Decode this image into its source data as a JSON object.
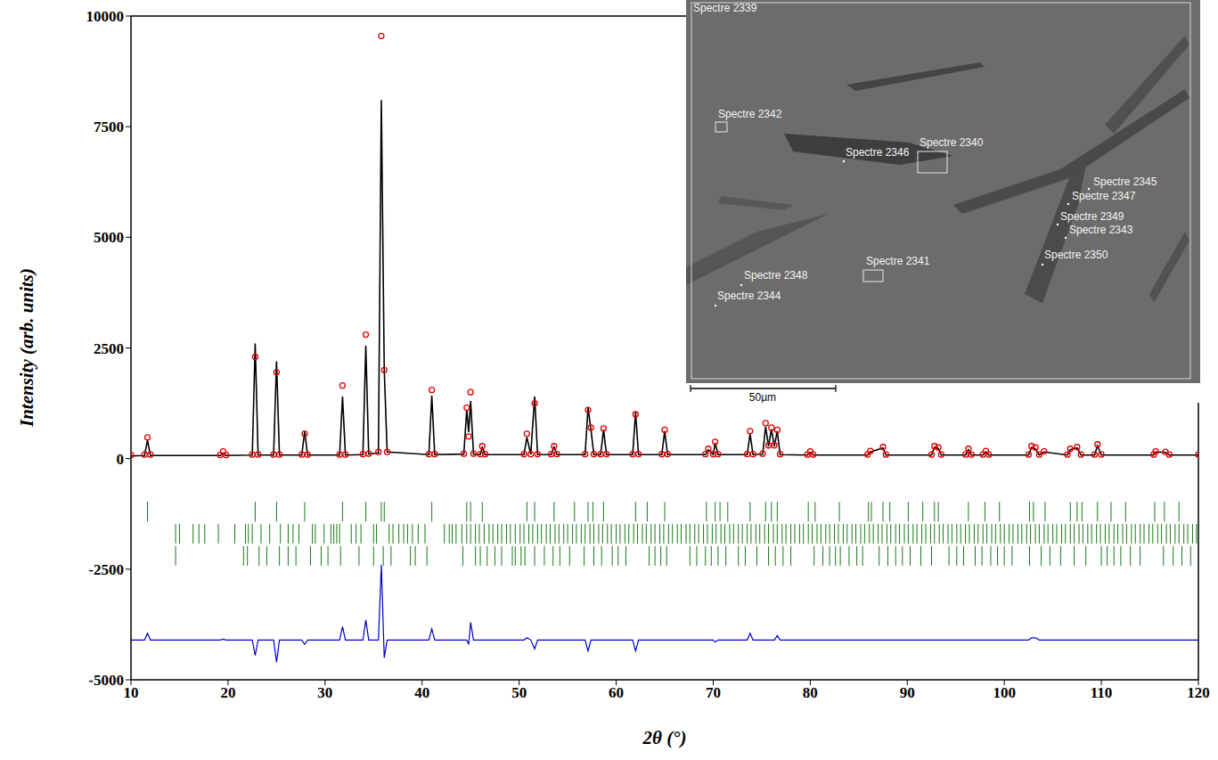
{
  "chart_data": {
    "type": "line",
    "x_label": "2θ (°)",
    "y_label": "Intensity (arb. units)",
    "xlim": [
      10,
      120
    ],
    "xticks": [
      10,
      20,
      30,
      40,
      50,
      60,
      70,
      80,
      90,
      100,
      110,
      120
    ],
    "ylim": [
      -5000,
      10000
    ],
    "yticks": [
      -5000,
      -2500,
      0,
      2500,
      5000,
      7500,
      10000
    ],
    "grid": false,
    "x": [
      10.0,
      11.4,
      11.7,
      12.0,
      19.2,
      19.5,
      19.8,
      22.5,
      22.8,
      23.1,
      24.7,
      25.0,
      25.3,
      27.6,
      27.9,
      28.2,
      31.5,
      31.8,
      32.1,
      33.9,
      34.2,
      34.5,
      35.5,
      35.8,
      36.1,
      36.4,
      40.7,
      41.0,
      41.3,
      44.3,
      44.6,
      44.8,
      45.0,
      45.3,
      46.0,
      46.2,
      46.5,
      50.5,
      50.8,
      51.2,
      51.6,
      51.9,
      53.3,
      53.6,
      53.9,
      56.8,
      57.1,
      57.4,
      57.7,
      58.4,
      58.7,
      59.0,
      61.7,
      62.0,
      62.3,
      64.7,
      65.0,
      65.3,
      69.2,
      69.5,
      70.0,
      70.2,
      70.5,
      73.5,
      73.8,
      74.1,
      75.1,
      75.4,
      75.7,
      76.0,
      76.3,
      76.6,
      76.9,
      79.7,
      80.0,
      80.3,
      85.9,
      86.2,
      87.5,
      87.8,
      92.5,
      92.8,
      93.2,
      93.5,
      96.0,
      96.3,
      96.6,
      97.8,
      98.1,
      98.4,
      102.5,
      102.8,
      103.2,
      103.6,
      104.1,
      106.5,
      106.8,
      107.5,
      107.9,
      109.3,
      109.6,
      110.0,
      115.4,
      115.6,
      116.6,
      117.0,
      120.0
    ],
    "series": [
      {
        "type": "scatter",
        "marker": "circle",
        "color": "#e00000",
        "values": [
          80,
          90,
          480,
          90,
          80,
          160,
          80,
          90,
          2300,
          90,
          90,
          1950,
          90,
          90,
          560,
          90,
          90,
          1650,
          90,
          100,
          2800,
          110,
          150,
          9550,
          2000,
          150,
          100,
          1550,
          100,
          110,
          1150,
          500,
          1500,
          110,
          100,
          280,
          100,
          100,
          560,
          100,
          1250,
          100,
          100,
          280,
          100,
          100,
          1100,
          700,
          100,
          100,
          680,
          100,
          100,
          1000,
          100,
          100,
          650,
          100,
          100,
          220,
          100,
          380,
          100,
          100,
          620,
          100,
          110,
          800,
          300,
          700,
          300,
          650,
          100,
          90,
          160,
          90,
          90,
          170,
          260,
          90,
          90,
          280,
          250,
          90,
          90,
          220,
          90,
          90,
          170,
          90,
          90,
          280,
          250,
          90,
          160,
          90,
          220,
          260,
          90,
          90,
          320,
          90,
          90,
          160,
          150,
          90,
          90
        ]
      },
      {
        "type": "line",
        "line_style": "solid",
        "color": "#000000",
        "values": [
          60,
          70,
          420,
          70,
          70,
          120,
          70,
          80,
          2600,
          80,
          80,
          2200,
          80,
          80,
          620,
          80,
          80,
          1400,
          80,
          90,
          2550,
          100,
          130,
          8100,
          2000,
          150,
          90,
          1420,
          90,
          100,
          1100,
          600,
          1300,
          100,
          90,
          250,
          90,
          90,
          480,
          90,
          1400,
          90,
          90,
          260,
          90,
          90,
          1150,
          650,
          90,
          90,
          650,
          90,
          90,
          1050,
          90,
          90,
          620,
          90,
          90,
          200,
          90,
          350,
          90,
          90,
          560,
          90,
          100,
          720,
          280,
          660,
          280,
          620,
          90,
          80,
          140,
          80,
          80,
          150,
          240,
          80,
          80,
          250,
          230,
          80,
          80,
          200,
          80,
          80,
          150,
          80,
          80,
          250,
          220,
          80,
          150,
          80,
          200,
          240,
          80,
          80,
          290,
          80,
          80,
          150,
          140,
          80,
          80
        ]
      },
      {
        "type": "line",
        "line_style": "solid",
        "color": "#0000c8",
        "values": [
          -4100,
          -4100,
          -3950,
          -4100,
          -4100,
          -4080,
          -4100,
          -4100,
          -4450,
          -4100,
          -4100,
          -4600,
          -4100,
          -4100,
          -4200,
          -4100,
          -4100,
          -3800,
          -4100,
          -4100,
          -3650,
          -4100,
          -4100,
          -2400,
          -4500,
          -4100,
          -4100,
          -3850,
          -4100,
          -4100,
          -4100,
          -4200,
          -3700,
          -4100,
          -4100,
          -4100,
          -4100,
          -4100,
          -4050,
          -4100,
          -4300,
          -4100,
          -4100,
          -4100,
          -4100,
          -4100,
          -4350,
          -4100,
          -4100,
          -4100,
          -4100,
          -4100,
          -4100,
          -4350,
          -4100,
          -4100,
          -4100,
          -4100,
          -4100,
          -4100,
          -4100,
          -4150,
          -4100,
          -4100,
          -3950,
          -4100,
          -4100,
          -4100,
          -4100,
          -4100,
          -4100,
          -4000,
          -4100,
          -4100,
          -4100,
          -4100,
          -4100,
          -4100,
          -4100,
          -4100,
          -4100,
          -4100,
          -4100,
          -4100,
          -4100,
          -4100,
          -4100,
          -4100,
          -4100,
          -4100,
          -4100,
          -4050,
          -4050,
          -4100,
          -4100,
          -4100,
          -4100,
          -4100,
          -4100,
          -4100,
          -4100,
          -4100,
          -4100,
          -4100,
          -4100,
          -4100,
          -4100
        ]
      }
    ],
    "bragg_positions": [
      {
        "color": "#1a7a1a",
        "level": -1200,
        "positions": [
          11.7,
          22.8,
          25.0,
          27.9,
          31.8,
          34.2,
          35.8,
          36.1,
          41.0,
          44.6,
          45.0,
          46.2,
          50.8,
          51.6,
          53.6,
          55.7,
          57.1,
          57.6,
          58.7,
          62.0,
          63.2,
          65.0,
          69.3,
          70.2,
          70.7,
          71.5,
          73.8,
          75.4,
          76.0,
          76.6,
          79.8,
          80.5,
          83.0,
          86.0,
          86.3,
          87.5,
          88.2,
          90.1,
          91.6,
          92.8,
          93.2,
          96.3,
          98.0,
          99.5,
          102.6,
          103.0,
          104.2,
          106.8,
          107.5,
          108.0,
          109.6,
          111.0,
          112.5,
          115.5,
          116.5,
          118.0
        ]
      },
      {
        "color": "#1a7a1a",
        "level": -1700,
        "positions": [
          14.6,
          15.0,
          16.4,
          17.0,
          17.6,
          19.0,
          20.7,
          21.8,
          22.1,
          22.5,
          23.4,
          24.3,
          25.4,
          26.2,
          26.7,
          27.3,
          28.7,
          29.0,
          29.9,
          30.6,
          30.9,
          31.2,
          31.5,
          32.7,
          33.2,
          33.7,
          35.0,
          35.3,
          36.6,
          37.0,
          37.6,
          38.1,
          38.5,
          39.0,
          39.6,
          40.3,
          42.3,
          42.8,
          43.1,
          43.5,
          44.1,
          44.6,
          45.0,
          45.5,
          45.9,
          46.4,
          46.9,
          47.3,
          47.8,
          48.2,
          48.7,
          49.1,
          49.6,
          50.1,
          50.5,
          51.0,
          51.4,
          51.9,
          52.3,
          52.8,
          53.2,
          53.7,
          54.1,
          54.6,
          55.0,
          55.5,
          55.9,
          56.4,
          56.8,
          57.3,
          57.7,
          58.2,
          58.6,
          59.1,
          59.5,
          60.0,
          60.4,
          60.9,
          61.3,
          61.8,
          62.2,
          62.7,
          63.1,
          63.6,
          64.0,
          64.5,
          64.9,
          65.4,
          65.8,
          66.3,
          66.7,
          67.2,
          67.6,
          68.1,
          68.5,
          69.0,
          69.4,
          69.9,
          70.3,
          70.8,
          71.2,
          71.7,
          72.1,
          72.6,
          73.0,
          73.5,
          73.9,
          74.4,
          74.8,
          75.3,
          75.7,
          76.2,
          76.6,
          77.1,
          77.5,
          78.0,
          78.4,
          78.9,
          79.3,
          79.8,
          80.2,
          80.7,
          81.1,
          81.6,
          82.0,
          82.5,
          82.9,
          83.4,
          83.8,
          84.3,
          84.7,
          85.2,
          85.6,
          86.1,
          86.5,
          87.0,
          87.4,
          87.9,
          88.3,
          88.8,
          89.2,
          89.7,
          90.1,
          90.6,
          91.0,
          91.5,
          91.9,
          92.4,
          92.8,
          93.3,
          93.7,
          94.2,
          94.6,
          95.1,
          95.5,
          96.0,
          96.4,
          96.9,
          97.3,
          97.8,
          98.2,
          98.7,
          99.1,
          99.6,
          100.0,
          100.5,
          100.9,
          101.4,
          101.8,
          102.3,
          102.7,
          103.2,
          103.6,
          104.1,
          104.5,
          105.0,
          105.4,
          105.9,
          106.3,
          106.8,
          107.2,
          107.7,
          108.1,
          108.6,
          109.0,
          109.5,
          109.9,
          110.4,
          110.8,
          111.3,
          111.7,
          112.2,
          112.6,
          113.1,
          113.5,
          114.0,
          114.4,
          114.9,
          115.3,
          115.8,
          116.2,
          116.7,
          117.1,
          117.6,
          118.0,
          118.5,
          118.9,
          119.4,
          119.8
        ]
      },
      {
        "color": "#1a7a1a",
        "level": -2200,
        "positions": [
          14.6,
          21.6,
          22.0,
          23.2,
          24.0,
          25.3,
          26.2,
          27.0,
          28.5,
          29.6,
          30.3,
          31.6,
          33.5,
          35.0,
          36.0,
          36.8,
          38.8,
          39.3,
          40.5,
          44.2,
          45.5,
          46.0,
          46.7,
          47.5,
          48.2,
          49.3,
          49.6,
          50.2,
          50.6,
          51.6,
          52.6,
          53.5,
          54.2,
          55.2,
          56.7,
          57.7,
          58.5,
          59.6,
          60.2,
          61.0,
          63.4,
          64.0,
          64.6,
          65.2,
          67.6,
          68.3,
          69.2,
          69.8,
          70.5,
          71.3,
          72.6,
          73.3,
          74.5,
          75.7,
          76.4,
          77.2,
          78.0,
          80.4,
          81.3,
          82.0,
          82.6,
          83.1,
          84.0,
          84.8,
          85.4,
          87.1,
          88.0,
          88.8,
          89.5,
          90.3,
          91.4,
          92.5,
          94.3,
          95.1,
          95.8,
          97.0,
          97.7,
          98.6,
          99.3,
          100.0,
          100.8,
          102.6,
          103.8,
          104.7,
          105.8,
          107.2,
          108.4,
          110.0,
          110.6,
          111.3,
          112.0,
          113.0,
          114.0,
          116.4,
          117.4,
          118.3,
          119.2
        ]
      }
    ],
    "inset": {
      "labels": [
        "Spectre 2339",
        "Spectre 2342",
        "Spectre 2346",
        "Spectre 2340",
        "Spectre 2345",
        "Spectre 2347",
        "Spectre 2349",
        "Spectre 2343",
        "Spectre 2350",
        "Spectre 2348",
        "Spectre 2341",
        "Spectre 2344"
      ],
      "scale_bar": "50µm"
    }
  }
}
